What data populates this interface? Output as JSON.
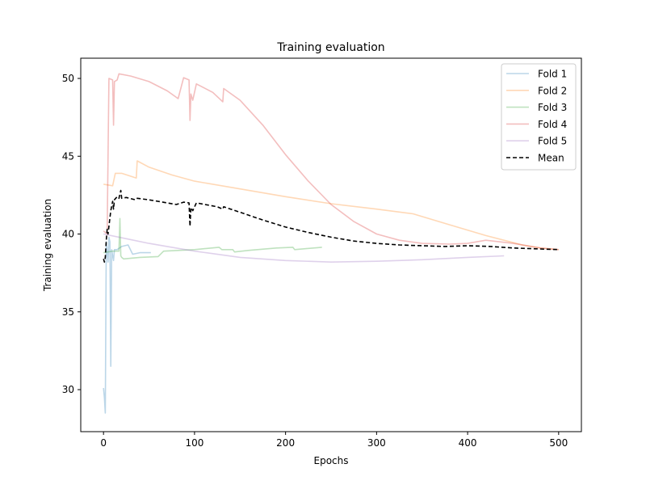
{
  "chart_data": {
    "type": "line",
    "title": "Training evaluation",
    "xlabel": "Epochs",
    "ylabel": "Training evaluation",
    "xlim": [
      -25,
      525
    ],
    "ylim": [
      27.3,
      51.3
    ],
    "xticks": [
      0,
      100,
      200,
      300,
      400,
      500
    ],
    "yticks": [
      30,
      35,
      40,
      45,
      50
    ],
    "grid": false,
    "legend_position": "top-right",
    "series": [
      {
        "name": "Fold 1",
        "color": "#1f77b4",
        "alpha": 0.3,
        "dashed": false,
        "points": [
          [
            0,
            30.1
          ],
          [
            1,
            29.5
          ],
          [
            2,
            28.5
          ],
          [
            3,
            39.5
          ],
          [
            4,
            39.0
          ],
          [
            5,
            38.2
          ],
          [
            6,
            39.8
          ],
          [
            7,
            39.5
          ],
          [
            8,
            31.5
          ],
          [
            9,
            39.0
          ],
          [
            10,
            38.6
          ],
          [
            11,
            38.3
          ],
          [
            12,
            39.0
          ],
          [
            15,
            39.0
          ],
          [
            20,
            39.2
          ],
          [
            27,
            39.3
          ],
          [
            32,
            38.7
          ],
          [
            40,
            38.8
          ],
          [
            52,
            38.8
          ]
        ]
      },
      {
        "name": "Fold 2",
        "color": "#ff7f0e",
        "alpha": 0.3,
        "dashed": false,
        "points": [
          [
            0,
            43.2
          ],
          [
            10,
            43.1
          ],
          [
            13,
            43.9
          ],
          [
            20,
            43.9
          ],
          [
            36,
            43.6
          ],
          [
            37,
            44.7
          ],
          [
            50,
            44.3
          ],
          [
            75,
            43.8
          ],
          [
            100,
            43.4
          ],
          [
            150,
            42.9
          ],
          [
            200,
            42.4
          ],
          [
            250,
            41.95
          ],
          [
            300,
            41.6
          ],
          [
            340,
            41.3
          ],
          [
            380,
            40.6
          ],
          [
            420,
            39.9
          ],
          [
            460,
            39.3
          ],
          [
            480,
            39.1
          ],
          [
            500,
            39.0
          ]
        ]
      },
      {
        "name": "Fold 3",
        "color": "#2ca02c",
        "alpha": 0.3,
        "dashed": false,
        "points": [
          [
            0,
            38.8
          ],
          [
            10,
            38.9
          ],
          [
            17,
            38.9
          ],
          [
            18,
            41.0
          ],
          [
            19,
            38.6
          ],
          [
            20,
            38.5
          ],
          [
            22,
            38.4
          ],
          [
            40,
            38.5
          ],
          [
            60,
            38.55
          ],
          [
            66,
            38.9
          ],
          [
            100,
            39.0
          ],
          [
            127,
            39.15
          ],
          [
            130,
            39.0
          ],
          [
            142,
            39.0
          ],
          [
            144,
            38.85
          ],
          [
            160,
            38.95
          ],
          [
            190,
            39.1
          ],
          [
            208,
            39.15
          ],
          [
            210,
            39.0
          ],
          [
            240,
            39.15
          ]
        ]
      },
      {
        "name": "Fold 4",
        "color": "#d62728",
        "alpha": 0.3,
        "dashed": false,
        "points": [
          [
            0,
            40.2
          ],
          [
            4,
            40.0
          ],
          [
            6,
            50.0
          ],
          [
            10,
            49.9
          ],
          [
            11,
            47.0
          ],
          [
            12,
            49.8
          ],
          [
            15,
            49.9
          ],
          [
            17,
            50.3
          ],
          [
            30,
            50.15
          ],
          [
            50,
            49.8
          ],
          [
            70,
            49.2
          ],
          [
            82,
            48.7
          ],
          [
            88,
            50.05
          ],
          [
            94,
            49.9
          ],
          [
            95,
            47.3
          ],
          [
            96,
            49.0
          ],
          [
            98,
            48.6
          ],
          [
            102,
            49.65
          ],
          [
            120,
            49.1
          ],
          [
            131,
            48.5
          ],
          [
            132,
            49.35
          ],
          [
            150,
            48.6
          ],
          [
            175,
            47.0
          ],
          [
            200,
            45.1
          ],
          [
            225,
            43.4
          ],
          [
            250,
            41.9
          ],
          [
            275,
            40.8
          ],
          [
            300,
            40.0
          ],
          [
            325,
            39.6
          ],
          [
            350,
            39.4
          ],
          [
            380,
            39.35
          ],
          [
            400,
            39.4
          ],
          [
            420,
            39.6
          ],
          [
            450,
            39.4
          ],
          [
            480,
            39.1
          ],
          [
            500,
            39.0
          ]
        ]
      },
      {
        "name": "Fold 5",
        "color": "#9467bd",
        "alpha": 0.3,
        "dashed": false,
        "points": [
          [
            0,
            40.0
          ],
          [
            25,
            39.7
          ],
          [
            50,
            39.4
          ],
          [
            75,
            39.15
          ],
          [
            100,
            38.9
          ],
          [
            150,
            38.5
          ],
          [
            200,
            38.3
          ],
          [
            250,
            38.2
          ],
          [
            300,
            38.25
          ],
          [
            350,
            38.35
          ],
          [
            400,
            38.5
          ],
          [
            440,
            38.6
          ]
        ]
      },
      {
        "name": "Mean",
        "color": "#000000",
        "alpha": 1.0,
        "dashed": true,
        "points": [
          [
            0,
            38.4
          ],
          [
            1,
            38.2
          ],
          [
            2,
            38.5
          ],
          [
            3,
            39.6
          ],
          [
            4,
            40.3
          ],
          [
            5,
            40.0
          ],
          [
            6,
            40.5
          ],
          [
            8,
            41.5
          ],
          [
            10,
            42.1
          ],
          [
            11,
            41.6
          ],
          [
            12,
            42.2
          ],
          [
            15,
            42.4
          ],
          [
            17,
            42.3
          ],
          [
            19,
            42.8
          ],
          [
            20,
            42.3
          ],
          [
            25,
            42.35
          ],
          [
            35,
            42.2
          ],
          [
            37,
            42.3
          ],
          [
            50,
            42.2
          ],
          [
            70,
            42.0
          ],
          [
            80,
            41.9
          ],
          [
            88,
            42.05
          ],
          [
            94,
            42.0
          ],
          [
            95,
            40.5
          ],
          [
            96,
            41.7
          ],
          [
            98,
            41.5
          ],
          [
            102,
            42.0
          ],
          [
            125,
            41.75
          ],
          [
            131,
            41.6
          ],
          [
            132,
            41.75
          ],
          [
            150,
            41.4
          ],
          [
            175,
            40.9
          ],
          [
            200,
            40.45
          ],
          [
            225,
            40.1
          ],
          [
            250,
            39.8
          ],
          [
            275,
            39.55
          ],
          [
            300,
            39.4
          ],
          [
            325,
            39.3
          ],
          [
            350,
            39.25
          ],
          [
            375,
            39.2
          ],
          [
            400,
            39.25
          ],
          [
            425,
            39.2
          ],
          [
            450,
            39.1
          ],
          [
            475,
            39.05
          ],
          [
            500,
            39.0
          ]
        ]
      }
    ]
  }
}
